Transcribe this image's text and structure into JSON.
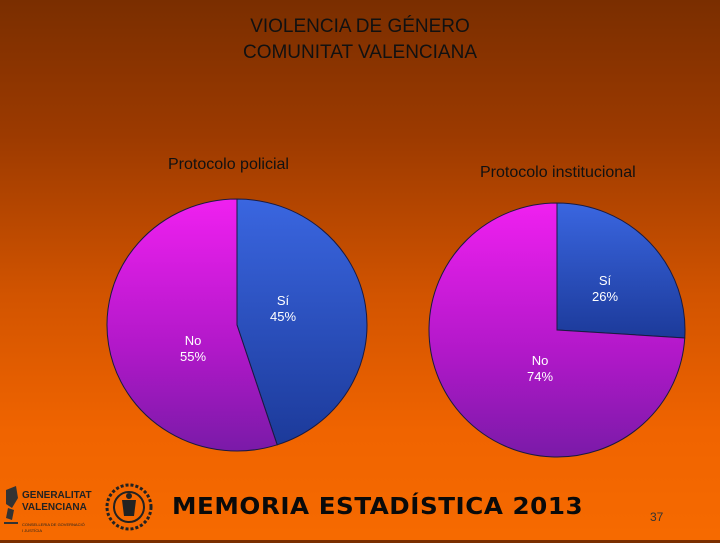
{
  "slide": {
    "title_line1": "VIOLENCIA DE GÉNERO",
    "title_line2": "COMUNITAT VALENCIANA",
    "banner": "MEMORIA ESTADÍSTICA 2013",
    "page_number": "37",
    "logo_text": "GENERALITAT VALENCIANA",
    "logo_subtext": "CONSELLERIA DE GOVERNACIÓ I JUSTÍCIA"
  },
  "colors": {
    "si_slice": "#2f5ad6",
    "no_slice": "#e020e8"
  },
  "chart_data": [
    {
      "type": "pie",
      "title": "Protocolo policial",
      "slices": [
        {
          "label": "Sí",
          "value": 45,
          "value_label": "45%"
        },
        {
          "label": "No",
          "value": 55,
          "value_label": "55%"
        }
      ]
    },
    {
      "type": "pie",
      "title": "Protocolo institucional",
      "slices": [
        {
          "label": "Sí",
          "value": 26,
          "value_label": "26%"
        },
        {
          "label": "No",
          "value": 74,
          "value_label": "74%"
        }
      ]
    }
  ]
}
